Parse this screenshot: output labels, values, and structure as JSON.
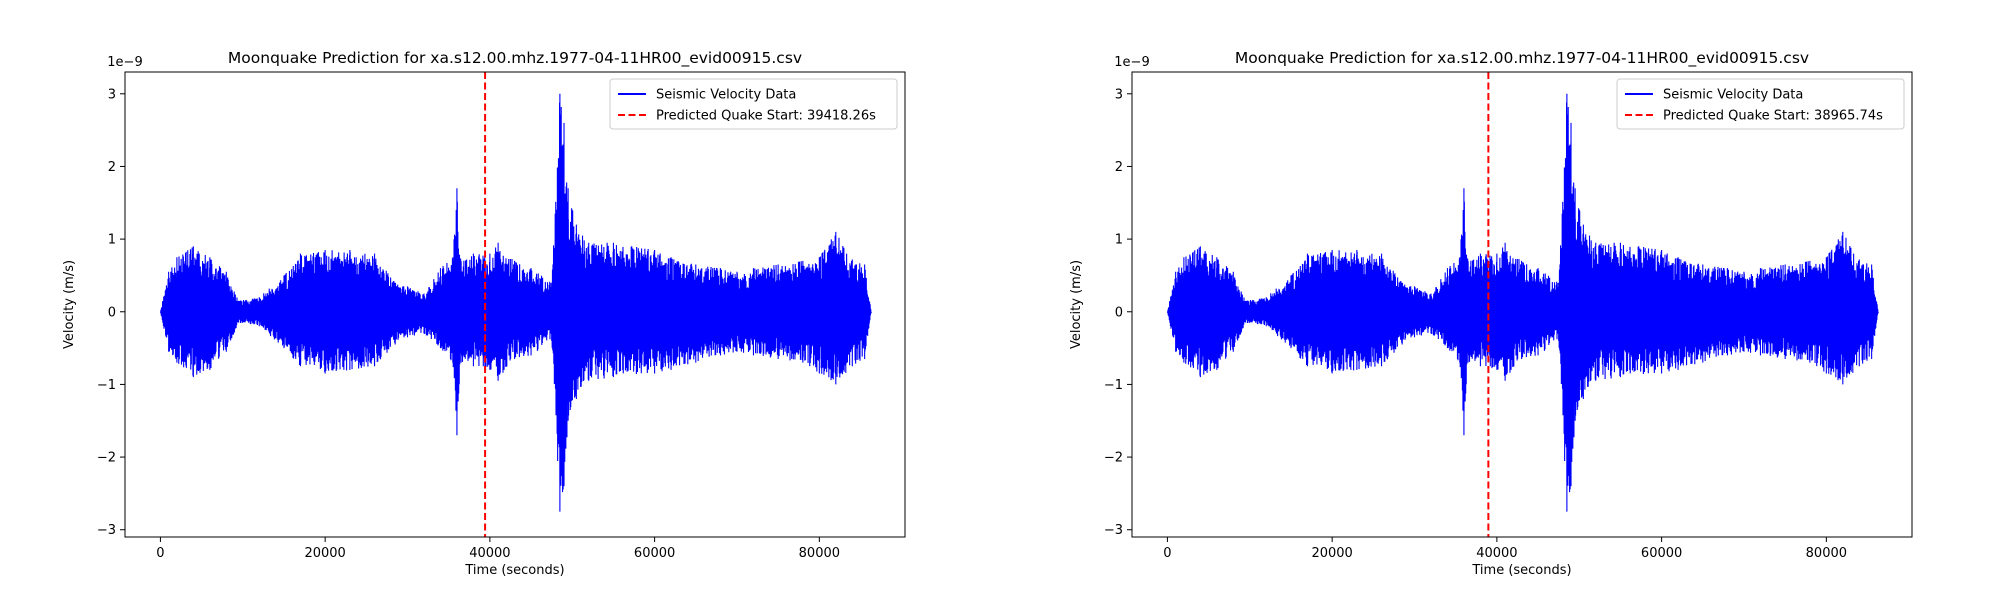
{
  "chart_data": [
    {
      "type": "line",
      "title": "Moonquake Prediction for xa.s12.00.mhz.1977-04-11HR00_evid00915.csv",
      "xlabel": "Time (seconds)",
      "ylabel": "Velocity (m/s)",
      "y_offset_text": "1e−9",
      "xlim": [
        -4300,
        90400
      ],
      "ylim": [
        -3.1,
        3.3
      ],
      "x_ticks": [
        0,
        20000,
        40000,
        60000,
        80000
      ],
      "x_tick_labels": [
        "0",
        "20000",
        "40000",
        "60000",
        "80000"
      ],
      "y_ticks": [
        -3,
        -2,
        -1,
        0,
        1,
        2,
        3
      ],
      "y_tick_labels": [
        "−3",
        "−2",
        "−1",
        "0",
        "1",
        "2",
        "3"
      ],
      "legend_position": "upper right",
      "series": [
        {
          "name": "Seismic Velocity Data",
          "color": "#0000ff",
          "style": "solid",
          "envelope": {
            "x": [
              0,
              1000,
              2000,
              4000,
              6000,
              8000,
              9500,
              12000,
              15000,
              17000,
              20000,
              23000,
              26000,
              28500,
              30000,
              32000,
              34000,
              35500,
              36000,
              36500,
              38000,
              40000,
              41000,
              43000,
              45000,
              47500,
              48500,
              49000,
              49500,
              50500,
              52000,
              55000,
              60000,
              62000,
              65000,
              68000,
              70000,
              72000,
              75000,
              78000,
              80000,
              82000,
              84000,
              85500,
              86300
            ],
            "upper": [
              0,
              0.55,
              0.75,
              0.9,
              0.75,
              0.55,
              0.15,
              0.2,
              0.5,
              0.8,
              0.85,
              0.85,
              0.8,
              0.4,
              0.35,
              0.25,
              0.6,
              0.75,
              1.7,
              0.7,
              0.8,
              0.8,
              0.95,
              0.7,
              0.6,
              0.4,
              3.0,
              2.6,
              1.7,
              1.2,
              0.95,
              0.95,
              0.85,
              0.75,
              0.65,
              0.6,
              0.55,
              0.6,
              0.65,
              0.7,
              0.75,
              1.1,
              0.72,
              0.65,
              0
            ],
            "lower": [
              0,
              -0.55,
              -0.7,
              -0.9,
              -0.8,
              -0.55,
              -0.15,
              -0.2,
              -0.5,
              -0.75,
              -0.85,
              -0.8,
              -0.75,
              -0.45,
              -0.35,
              -0.3,
              -0.5,
              -0.7,
              -1.7,
              -0.7,
              -0.75,
              -0.8,
              -0.95,
              -0.65,
              -0.6,
              -0.4,
              -2.75,
              -2.4,
              -1.5,
              -1.2,
              -0.95,
              -0.9,
              -0.85,
              -0.8,
              -0.7,
              -0.6,
              -0.55,
              -0.6,
              -0.65,
              -0.7,
              -0.85,
              -1.0,
              -0.75,
              -0.65,
              0
            ]
          }
        },
        {
          "name": "Predicted Quake Start: 39418.26s",
          "color": "#ff0000",
          "style": "dashed",
          "x": 39418.26
        }
      ]
    },
    {
      "type": "line",
      "title": "Moonquake Prediction for xa.s12.00.mhz.1977-04-11HR00_evid00915.csv",
      "xlabel": "Time (seconds)",
      "ylabel": "Velocity (m/s)",
      "y_offset_text": "1e−9",
      "xlim": [
        -4300,
        90400
      ],
      "ylim": [
        -3.1,
        3.3
      ],
      "x_ticks": [
        0,
        20000,
        40000,
        60000,
        80000
      ],
      "x_tick_labels": [
        "0",
        "20000",
        "40000",
        "60000",
        "80000"
      ],
      "y_ticks": [
        -3,
        -2,
        -1,
        0,
        1,
        2,
        3
      ],
      "y_tick_labels": [
        "−3",
        "−2",
        "−1",
        "0",
        "1",
        "2",
        "3"
      ],
      "legend_position": "upper right",
      "series": [
        {
          "name": "Seismic Velocity Data",
          "color": "#0000ff",
          "style": "solid",
          "envelope": {
            "x": [
              0,
              1000,
              2000,
              4000,
              6000,
              8000,
              9500,
              12000,
              15000,
              17000,
              20000,
              23000,
              26000,
              28500,
              30000,
              32000,
              34000,
              35500,
              36000,
              36500,
              38000,
              40000,
              41000,
              43000,
              45000,
              47500,
              48500,
              49000,
              49500,
              50500,
              52000,
              55000,
              60000,
              62000,
              65000,
              68000,
              70000,
              72000,
              75000,
              78000,
              80000,
              82000,
              84000,
              85500,
              86300
            ],
            "upper": [
              0,
              0.55,
              0.75,
              0.9,
              0.75,
              0.55,
              0.15,
              0.2,
              0.5,
              0.8,
              0.85,
              0.85,
              0.8,
              0.4,
              0.35,
              0.25,
              0.6,
              0.75,
              1.7,
              0.7,
              0.8,
              0.8,
              0.95,
              0.7,
              0.6,
              0.4,
              3.0,
              2.6,
              1.7,
              1.2,
              0.95,
              0.95,
              0.85,
              0.75,
              0.65,
              0.6,
              0.55,
              0.6,
              0.65,
              0.7,
              0.75,
              1.1,
              0.72,
              0.65,
              0
            ],
            "lower": [
              0,
              -0.55,
              -0.7,
              -0.9,
              -0.8,
              -0.55,
              -0.15,
              -0.2,
              -0.5,
              -0.75,
              -0.85,
              -0.8,
              -0.75,
              -0.45,
              -0.35,
              -0.3,
              -0.5,
              -0.7,
              -1.7,
              -0.7,
              -0.75,
              -0.8,
              -0.95,
              -0.65,
              -0.6,
              -0.4,
              -2.75,
              -2.4,
              -1.5,
              -1.2,
              -0.95,
              -0.9,
              -0.85,
              -0.8,
              -0.7,
              -0.6,
              -0.55,
              -0.6,
              -0.65,
              -0.7,
              -0.85,
              -1.0,
              -0.75,
              -0.65,
              0
            ]
          }
        },
        {
          "name": "Predicted Quake Start: 38965.74s",
          "color": "#ff0000",
          "style": "dashed",
          "x": 38965.74
        }
      ]
    }
  ]
}
